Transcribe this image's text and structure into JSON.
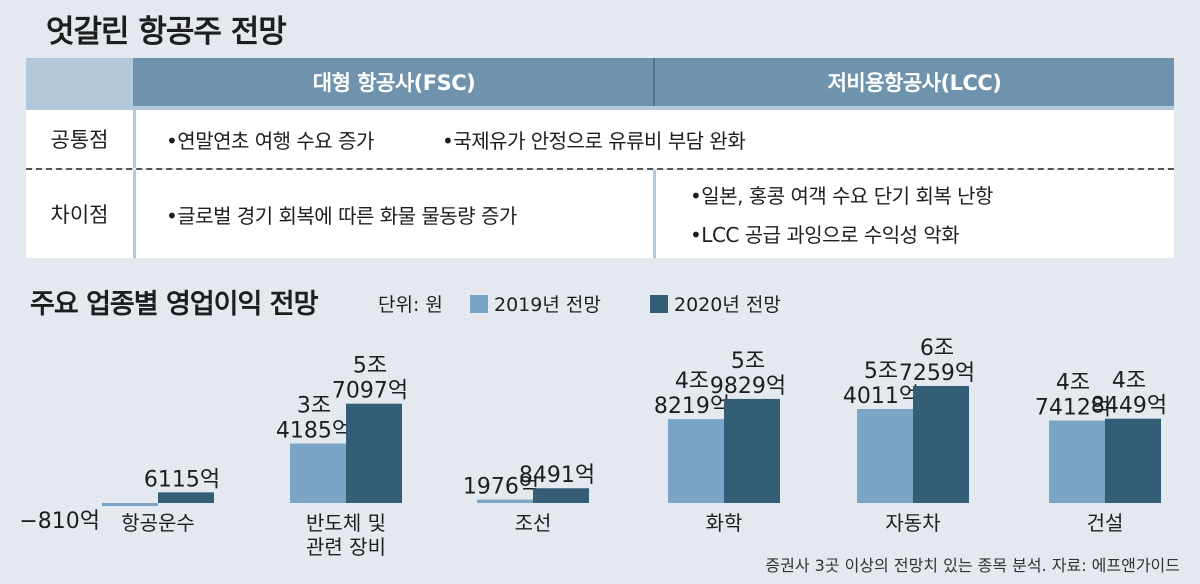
{
  "title": "엇갈린 항공주 전망",
  "table": {
    "col_fsc": "대형 항공사(FSC)",
    "col_lcc": "저비용항공사(LCC)",
    "row_common": {
      "label": "공통점",
      "items": [
        "•연말연초 여행 수요 증가",
        "•국제유가 안정으로 유류비 부담 완화"
      ]
    },
    "row_diff": {
      "label": "차이점",
      "fsc_items": [
        "•글로벌 경기 회복에 따른 화물 물동량 증가"
      ],
      "lcc_items": [
        "•일본, 홍콩 여객 수요 단기 회복 난항",
        "•LCC 공급 과잉으로 수익성 악화"
      ]
    }
  },
  "chart_title": "주요 업종별 영업이익 전망",
  "unit": "단위: 원",
  "source": "증권사 3곳 이상의 전망치 있는 종목 분석.  자료: 에프앤가이드",
  "colors": {
    "s2019": "#7ba5c6",
    "s2020": "#335e76"
  },
  "chart_data": {
    "type": "bar",
    "categories": [
      "항공운수",
      "반도체 및\n관련 장비",
      "조선",
      "화학",
      "자동차",
      "건설"
    ],
    "series": [
      {
        "name": "2019년 전망",
        "values": [
          -810,
          34185,
          1976,
          48219,
          54011,
          47412
        ],
        "labels": [
          "−810억",
          "3조\n4185억",
          "1976억",
          "4조\n8219억",
          "5조\n4011억",
          "4조\n7412억"
        ]
      },
      {
        "name": "2020년 전망",
        "values": [
          6115,
          57097,
          8491,
          59829,
          67259,
          48449
        ],
        "labels": [
          "6115억",
          "5조\n7097억",
          "8491억",
          "5조\n9829억",
          "6조\n7259억",
          "4조\n8449억"
        ]
      }
    ],
    "unit": "억 원",
    "legend_position": "top",
    "grid": false
  }
}
